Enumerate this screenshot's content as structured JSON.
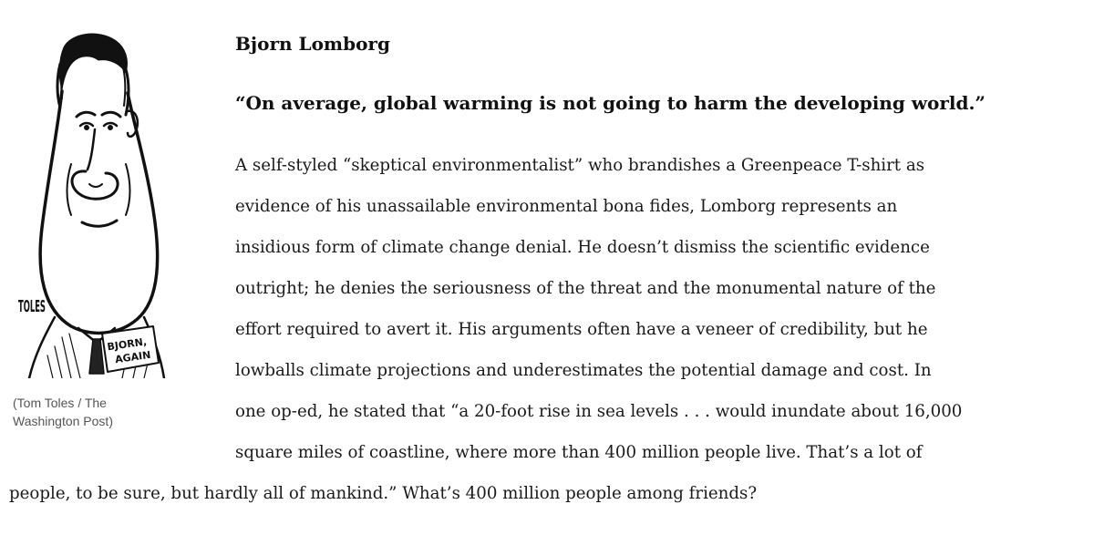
{
  "figure": {
    "sign_line1": "BJORN,",
    "sign_line2": "AGAIN",
    "signature": "TOLES",
    "caption": "(Tom Toles / The Washington Post)"
  },
  "article": {
    "name": "Bjorn Lomborg",
    "quote": "“On average, global warming is not going to harm the developing world.”",
    "lines": [
      "A self-styled “skeptical environmentalist” who brandishes a Greenpeace T-shirt as",
      "evidence of his unassailable environmental bona fides, Lomborg represents an",
      "insidious form of climate change denial. He doesn’t dismiss the scientific evidence",
      "outright; he denies the seriousness of the threat and the monumental nature of the",
      "effort required to avert it. His arguments often have a veneer of credibility, but he",
      "lowballs climate projections and underestimates the potential damage and cost. In",
      "one op-ed, he stated that “a 20-foot rise in sea levels . . . would inundate about 16,000",
      "square miles of coastline, where more than 400 million people live. That’s a lot of",
      "people, to be sure, but hardly all of mankind.” What’s 400 million people among friends?"
    ]
  }
}
